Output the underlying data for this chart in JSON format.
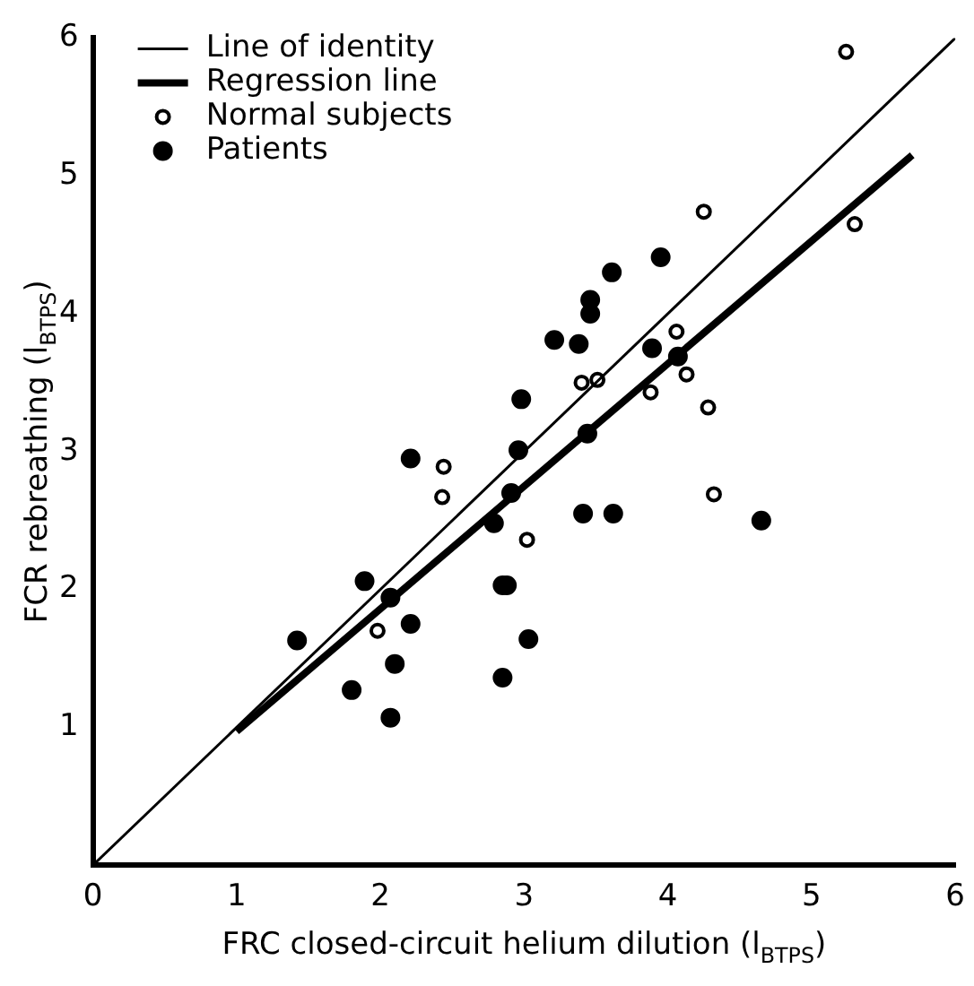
{
  "chart_data": {
    "type": "scatter",
    "xlabel": "FRC closed-circuit helium dilution (l$_{BTPS}$)",
    "ylabel": "FCR rebreathing (l$_{BTPS}$)",
    "xlim": [
      0,
      6
    ],
    "ylim": [
      0,
      6
    ],
    "xticks": [
      0,
      1,
      2,
      3,
      4,
      5,
      6
    ],
    "yticks": [
      1,
      2,
      3,
      4,
      5,
      6
    ],
    "grid": false,
    "legend": "top left",
    "marker": "circle",
    "series": [
      {
        "name": "Line of identity",
        "type": "line",
        "marker": "none",
        "color": "#000000",
        "x": [
          0,
          6
        ],
        "values": [
          0,
          6
        ]
      },
      {
        "name": "Regression line",
        "type": "line",
        "marker": "none",
        "color": "#000000",
        "x": [
          1.0,
          5.7
        ],
        "values": [
          0.97,
          5.15
        ]
      },
      {
        "name": "Normal subjects",
        "type": "scatter",
        "color": "#000000",
        "x": [
          5.24,
          5.3,
          4.25,
          4.06,
          4.13,
          3.88,
          4.28,
          3.4,
          3.51,
          2.44,
          4.32,
          2.43,
          3.02,
          1.98
        ],
        "values": [
          5.9,
          4.65,
          4.74,
          3.87,
          3.56,
          3.43,
          3.32,
          3.5,
          3.52,
          2.89,
          2.69,
          2.67,
          2.36,
          1.7
        ]
      },
      {
        "name": "Patients",
        "type": "scatter",
        "color": "#000000",
        "x": [
          2.21,
          2.98,
          2.96,
          3.21,
          3.38,
          3.46,
          3.46,
          3.61,
          3.95,
          3.89,
          4.07,
          3.44,
          2.91,
          2.79,
          3.41,
          3.62,
          4.65,
          1.89,
          2.07,
          2.21,
          1.42,
          2.85,
          2.88,
          3.03,
          2.1,
          1.8,
          2.85,
          2.07
        ],
        "values": [
          2.95,
          3.38,
          3.01,
          3.81,
          3.78,
          4.1,
          4.0,
          4.3,
          4.41,
          3.75,
          3.69,
          3.13,
          2.7,
          2.48,
          2.55,
          2.55,
          2.5,
          2.06,
          1.94,
          1.75,
          1.63,
          2.03,
          2.03,
          1.64,
          1.46,
          1.27,
          1.36,
          1.07
        ]
      }
    ]
  }
}
